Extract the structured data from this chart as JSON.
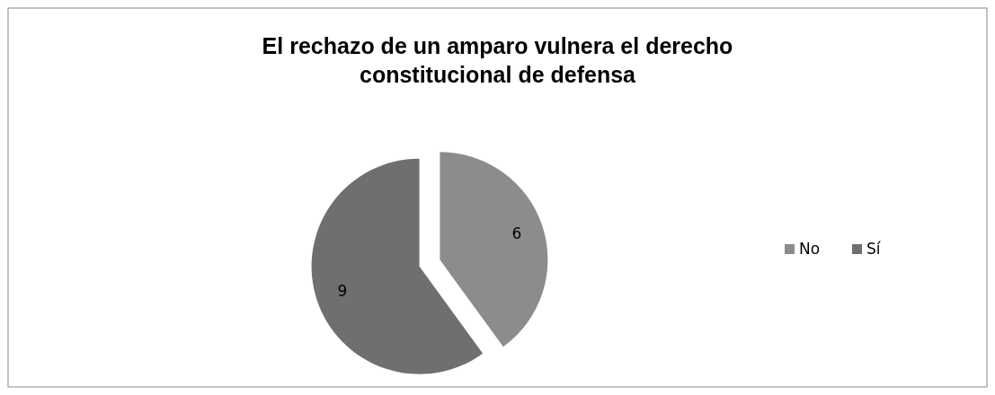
{
  "chart_data": {
    "type": "pie",
    "title": "El rechazo de un amparo vulnera el derecho constitucional de defensa",
    "categories": [
      "No",
      "Sí"
    ],
    "values": [
      6,
      9
    ],
    "colors": [
      "#8c8c8c",
      "#6f6f6f"
    ],
    "data_labels": true,
    "legend": "right"
  }
}
